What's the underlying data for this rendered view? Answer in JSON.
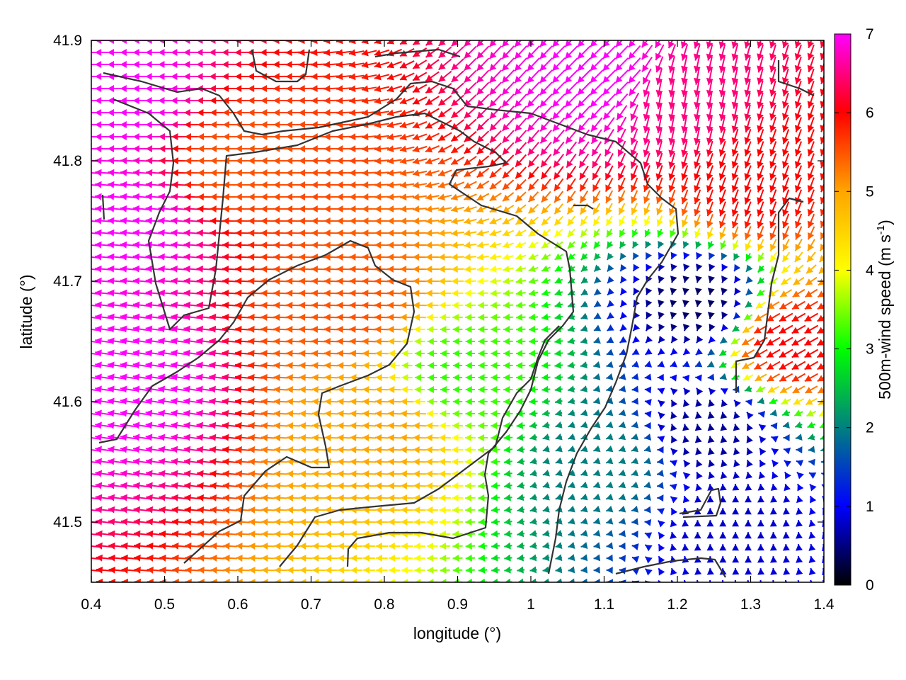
{
  "chart_data": {
    "type": "vector_field",
    "xlabel": "longitude (°)",
    "ylabel": "latitude (°)",
    "xlim": [
      0.4,
      1.4
    ],
    "ylim": [
      41.45,
      41.9
    ],
    "xticks": [
      "0.4",
      "0.5",
      "0.6",
      "0.7",
      "0.8",
      "0.9",
      "1",
      "1.1",
      "1.2",
      "1.3",
      "1.4"
    ],
    "yticks": [
      "41.5",
      "41.6",
      "41.7",
      "41.8",
      "41.9"
    ],
    "colorbar": {
      "label_prefix": "500m-wind speed (m s",
      "label_sup": "-1",
      "label_suffix": ")",
      "range": [
        0,
        7
      ],
      "ticks": [
        "0",
        "1",
        "2",
        "3",
        "4",
        "5",
        "6",
        "7"
      ],
      "palette": [
        "#000000",
        "#0000ff",
        "#008080",
        "#00ff00",
        "#ffff00",
        "#ffa500",
        "#ff0000",
        "#ff00ff"
      ]
    },
    "wind_samples": [
      {
        "lon": 0.45,
        "lat": 41.85,
        "speed": 7.0,
        "dir_deg": 180
      },
      {
        "lon": 0.45,
        "lat": 41.75,
        "speed": 7.0,
        "dir_deg": 175
      },
      {
        "lon": 0.45,
        "lat": 41.62,
        "speed": 7.0,
        "dir_deg": 172
      },
      {
        "lon": 0.6,
        "lat": 41.8,
        "speed": 5.5,
        "dir_deg": 180
      },
      {
        "lon": 0.75,
        "lat": 41.68,
        "speed": 5.5,
        "dir_deg": 178
      },
      {
        "lon": 0.8,
        "lat": 41.58,
        "speed": 5.0,
        "dir_deg": 178
      },
      {
        "lon": 0.9,
        "lat": 41.62,
        "speed": 3.2,
        "dir_deg": 180
      },
      {
        "lon": 1.1,
        "lat": 41.87,
        "speed": 7.0,
        "dir_deg": 225
      },
      {
        "lon": 1.2,
        "lat": 41.85,
        "speed": 6.5,
        "dir_deg": 260
      },
      {
        "lon": 1.3,
        "lat": 41.78,
        "speed": 6.0,
        "dir_deg": 250
      },
      {
        "lon": 1.35,
        "lat": 41.65,
        "speed": 6.0,
        "dir_deg": 210
      },
      {
        "lon": 1.1,
        "lat": 41.55,
        "speed": 2.0,
        "dir_deg": 200
      },
      {
        "lon": 1.24,
        "lat": 41.58,
        "speed": 0.6,
        "dir_deg": 100
      },
      {
        "lon": 1.23,
        "lat": 41.68,
        "speed": 0.4,
        "dir_deg": 260
      },
      {
        "lon": 1.27,
        "lat": 41.5,
        "speed": 0.8,
        "dir_deg": 90
      }
    ]
  }
}
